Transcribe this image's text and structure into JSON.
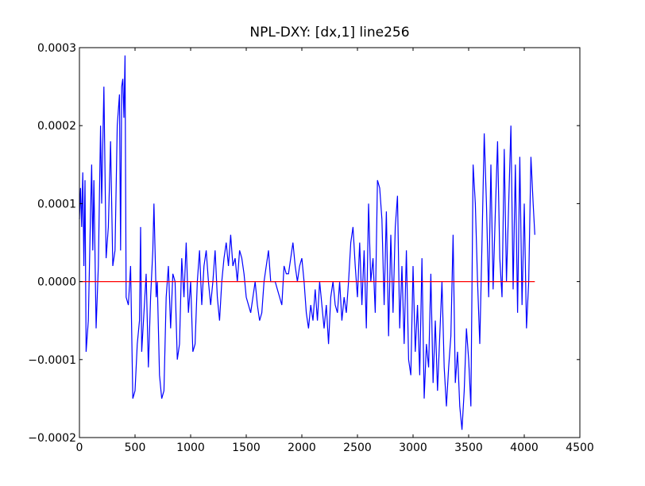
{
  "chart_data": {
    "type": "line",
    "title": "NPL-DXY: [dx,1] line256",
    "xlim": [
      0,
      4500
    ],
    "xticks": [
      0,
      500,
      1000,
      1500,
      2000,
      2500,
      3000,
      3500,
      4000,
      4500
    ],
    "ylim": [
      -0.0002,
      0.0003
    ],
    "yticks": [
      {
        "value": -0.0002,
        "label": "−0.0002"
      },
      {
        "value": -0.0001,
        "label": "−0.0001"
      },
      {
        "value": 0,
        "label": "0.0000"
      },
      0.0001,
      0.0002,
      0.0003
    ],
    "series": [
      {
        "color": "#0000ff",
        "x": [
          0,
          10,
          20,
          30,
          40,
          50,
          60,
          80,
          100,
          110,
          120,
          130,
          150,
          170,
          190,
          200,
          220,
          240,
          260,
          280,
          300,
          320,
          340,
          360,
          370,
          380,
          390,
          400,
          410,
          420,
          440,
          460,
          480,
          500,
          520,
          540,
          550,
          560,
          580,
          600,
          620,
          640,
          660,
          670,
          690,
          700,
          720,
          740,
          760,
          780,
          800,
          820,
          840,
          860,
          880,
          900,
          920,
          940,
          960,
          980,
          1000,
          1020,
          1040,
          1060,
          1080,
          1100,
          1120,
          1140,
          1160,
          1180,
          1200,
          1220,
          1240,
          1260,
          1280,
          1300,
          1320,
          1340,
          1360,
          1380,
          1400,
          1420,
          1440,
          1460,
          1480,
          1500,
          1520,
          1540,
          1560,
          1580,
          1600,
          1620,
          1640,
          1660,
          1680,
          1700,
          1720,
          1740,
          1760,
          1780,
          1800,
          1820,
          1840,
          1860,
          1880,
          1900,
          1920,
          1940,
          1960,
          1980,
          2000,
          2020,
          2040,
          2060,
          2080,
          2100,
          2120,
          2140,
          2160,
          2180,
          2200,
          2220,
          2240,
          2260,
          2280,
          2300,
          2320,
          2340,
          2360,
          2380,
          2400,
          2420,
          2440,
          2460,
          2480,
          2500,
          2520,
          2540,
          2560,
          2580,
          2600,
          2620,
          2640,
          2660,
          2680,
          2700,
          2720,
          2740,
          2760,
          2780,
          2800,
          2820,
          2840,
          2860,
          2880,
          2900,
          2920,
          2940,
          2960,
          2980,
          3000,
          3020,
          3040,
          3060,
          3080,
          3100,
          3120,
          3140,
          3160,
          3180,
          3200,
          3220,
          3240,
          3260,
          3280,
          3300,
          3320,
          3340,
          3360,
          3380,
          3400,
          3420,
          3440,
          3460,
          3480,
          3500,
          3520,
          3540,
          3560,
          3580,
          3600,
          3620,
          3640,
          3660,
          3680,
          3700,
          3720,
          3740,
          3760,
          3780,
          3800,
          3820,
          3840,
          3860,
          3880,
          3900,
          3920,
          3940,
          3960,
          3980,
          4000,
          4020,
          4040,
          4060,
          4080,
          4095
        ],
        "values": [
          8e-05,
          0.00012,
          7e-05,
          0.00014,
          2e-05,
          0.00013,
          -9e-05,
          -5e-05,
          9e-05,
          0.00015,
          4e-05,
          0.00013,
          -6e-05,
          2e-05,
          0.0002,
          0.0001,
          0.00025,
          3e-05,
          7e-05,
          0.00018,
          2e-05,
          4e-05,
          0.0002,
          0.00024,
          4e-05,
          0.00025,
          0.00026,
          0.00021,
          0.00029,
          -2e-05,
          -3e-05,
          2e-05,
          -0.00015,
          -0.00014,
          -8e-05,
          -5e-05,
          7e-05,
          -9e-05,
          -4e-05,
          1e-05,
          -0.00011,
          -2e-05,
          4e-05,
          0.0001,
          -2e-05,
          0,
          -0.00012,
          -0.00015,
          -0.00014,
          -2e-05,
          2e-05,
          -6e-05,
          1e-05,
          0,
          -0.0001,
          -8e-05,
          3e-05,
          -2e-05,
          5e-05,
          -4e-05,
          0,
          -9e-05,
          -8e-05,
          0,
          4e-05,
          -3e-05,
          2e-05,
          4e-05,
          0,
          -3e-05,
          0,
          4e-05,
          -2e-05,
          -5e-05,
          0,
          3e-05,
          5e-05,
          2e-05,
          6e-05,
          2e-05,
          3e-05,
          0,
          4e-05,
          3e-05,
          1e-05,
          -2e-05,
          -3e-05,
          -4e-05,
          -2e-05,
          0,
          -3e-05,
          -5e-05,
          -4e-05,
          0,
          2e-05,
          4e-05,
          0,
          0,
          0,
          -1e-05,
          -2e-05,
          -3e-05,
          2e-05,
          1e-05,
          1e-05,
          3e-05,
          5e-05,
          2e-05,
          0,
          2e-05,
          3e-05,
          0,
          -4e-05,
          -6e-05,
          -3e-05,
          -5e-05,
          -1e-05,
          -5e-05,
          0,
          -3e-05,
          -6e-05,
          -3e-05,
          -8e-05,
          -2e-05,
          0,
          -3e-05,
          -4e-05,
          0,
          -5e-05,
          -2e-05,
          -4e-05,
          0,
          5e-05,
          7e-05,
          2e-05,
          -2e-05,
          5e-05,
          -3e-05,
          4e-05,
          -6e-05,
          0.0001,
          0,
          3e-05,
          -4e-05,
          0.00013,
          0.00012,
          8e-05,
          -3e-05,
          9e-05,
          -7e-05,
          6e-05,
          -4e-05,
          7e-05,
          0.00011,
          -6e-05,
          2e-05,
          -8e-05,
          4e-05,
          -0.0001,
          -0.00012,
          2e-05,
          -9e-05,
          -3e-05,
          -0.00012,
          3e-05,
          -0.00015,
          -8e-05,
          -0.00011,
          1e-05,
          -0.00013,
          -5e-05,
          -0.00014,
          -7e-05,
          0,
          -0.00011,
          -0.00016,
          -0.00011,
          -7e-05,
          6e-05,
          -0.00013,
          -9e-05,
          -0.00016,
          -0.00019,
          -0.00014,
          -6e-05,
          -0.0001,
          -0.00016,
          0.00015,
          0.0001,
          0,
          -8e-05,
          5e-05,
          0.00019,
          0.0001,
          -2e-05,
          0.00015,
          -1e-05,
          9e-05,
          0.00018,
          3e-05,
          -2e-05,
          0.00017,
          0,
          0.0001,
          0.0002,
          -1e-05,
          0.00015,
          -4e-05,
          0.00016,
          -3e-05,
          0.0001,
          -6e-05,
          0,
          0.00016,
          0.0001,
          6e-05
        ]
      },
      {
        "color": "#ff0000",
        "x": [
          0,
          4095
        ],
        "values": [
          0,
          0
        ]
      }
    ]
  }
}
